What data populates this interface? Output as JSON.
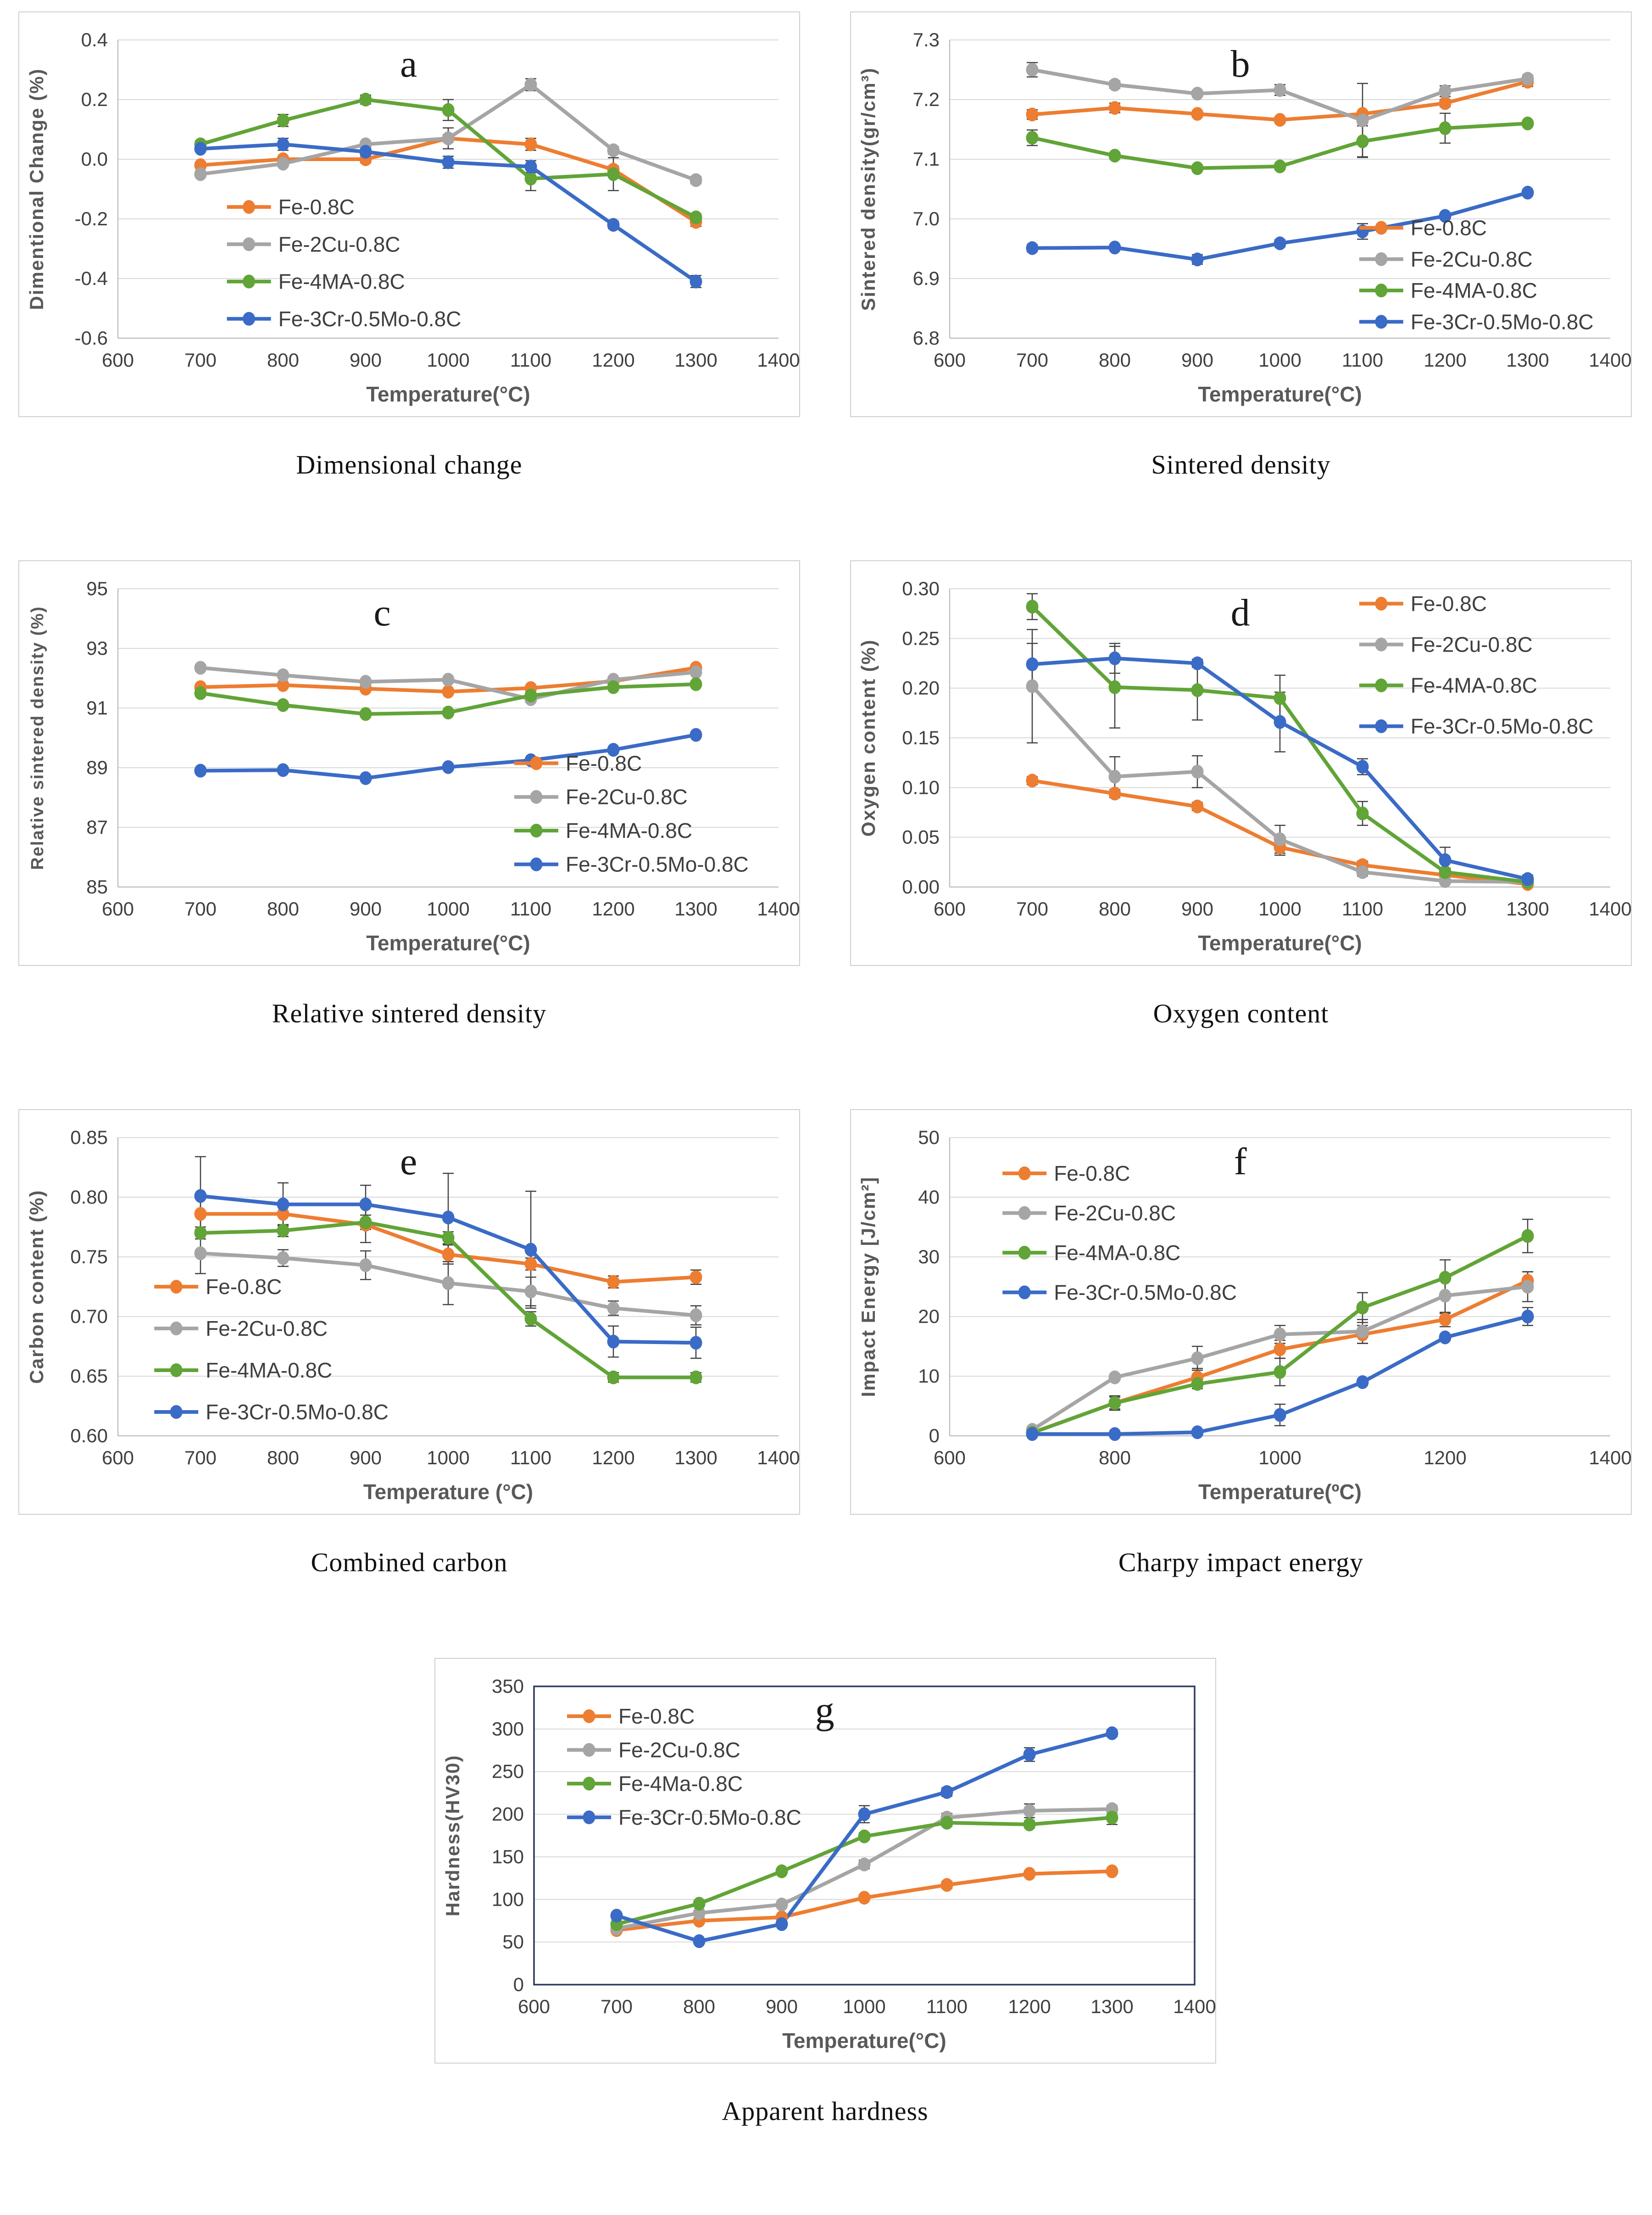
{
  "palette": {
    "gridline": "#d9d9d9",
    "axis": "#bfbfbf",
    "error_bar": "#404040",
    "tick_text": "#404040",
    "axis_label_text": "#595959",
    "legend_text": "#3f3f3f",
    "frame_dark": "#2e3a5f"
  },
  "chart_data": {
    "charts": [
      {
        "id": "a",
        "type": "line",
        "letter": "a",
        "caption": "Dimensional change",
        "xlabel": "Temperature(°C)",
        "ylabel": "Dimentional Change (%)",
        "xlim": [
          600,
          1400
        ],
        "xticks": [
          600,
          700,
          800,
          900,
          1000,
          1100,
          1200,
          1300,
          1400
        ],
        "ylim": [
          -0.6,
          0.4
        ],
        "ystep": 0.2,
        "ydec": 1,
        "grid": true,
        "frame": false,
        "letter_fx": 0.44,
        "legend": {
          "fx": 0.165,
          "fy": 0.56,
          "dy": 0.125
        },
        "x": [
          700,
          800,
          900,
          1000,
          1100,
          1200,
          1300
        ],
        "series": [
          {
            "name": "Fe-0.8C",
            "color": "#ED7D31",
            "values": [
              -0.02,
              0.0,
              0.0,
              0.07,
              0.05,
              -0.035,
              -0.21
            ],
            "err": [
              0.01,
              0.01,
              0.012,
              0.012,
              0.02,
              0.012,
              0.015
            ]
          },
          {
            "name": "Fe-2Cu-0.8C",
            "color": "#A5A5A5",
            "values": [
              -0.05,
              -0.015,
              0.05,
              0.07,
              0.25,
              0.03,
              -0.07
            ],
            "err": [
              0.01,
              0.01,
              0.01,
              0.035,
              0.02,
              0.012,
              0.012
            ]
          },
          {
            "name": "Fe-4MA-0.8C",
            "color": "#61A437",
            "values": [
              0.05,
              0.13,
              0.2,
              0.165,
              -0.065,
              -0.05,
              -0.195
            ],
            "err": [
              0.012,
              0.02,
              0.015,
              0.035,
              0.04,
              0.055,
              0.012
            ]
          },
          {
            "name": "Fe-3Cr-0.5Mo-0.8C",
            "color": "#3A6BC6",
            "values": [
              0.035,
              0.05,
              0.025,
              -0.01,
              -0.025,
              -0.22,
              -0.41
            ],
            "err": [
              0.008,
              0.02,
              0.012,
              0.02,
              0.02,
              0.012,
              0.02
            ]
          }
        ]
      },
      {
        "id": "b",
        "type": "line",
        "letter": "b",
        "caption": "Sintered density",
        "xlabel": "Temperature(°C)",
        "ylabel": "Sintered density(gr/cm³)",
        "xlim": [
          600,
          1400
        ],
        "xticks": [
          600,
          700,
          800,
          900,
          1000,
          1100,
          1200,
          1300,
          1400
        ],
        "ylim": [
          6.8,
          7.3
        ],
        "ystep": 0.1,
        "ydec": 1,
        "grid": true,
        "frame": false,
        "letter_fx": 0.44,
        "legend": {
          "fx": 0.62,
          "fy": 0.63,
          "dy": 0.105
        },
        "x": [
          700,
          800,
          900,
          1000,
          1100,
          1200,
          1300
        ],
        "series": [
          {
            "name": "Fe-0.8C",
            "color": "#ED7D31",
            "values": [
              7.175,
              7.186,
              7.176,
              7.166,
              7.176,
              7.194,
              7.23
            ],
            "err": [
              0.008,
              0.008,
              0.005,
              0.005,
              0.005,
              0.006,
              0.008
            ]
          },
          {
            "name": "Fe-2Cu-0.8C",
            "color": "#A5A5A5",
            "values": [
              7.25,
              7.225,
              7.21,
              7.216,
              7.165,
              7.214,
              7.235
            ],
            "err": [
              0.012,
              0.006,
              0.005,
              0.009,
              0.062,
              0.009,
              0.006
            ]
          },
          {
            "name": "Fe-4MA-0.8C",
            "color": "#61A437",
            "values": [
              7.136,
              7.106,
              7.085,
              7.088,
              7.13,
              7.152,
              7.16
            ],
            "err": [
              0.013,
              0.005,
              0.005,
              0.005,
              0.026,
              0.025,
              0.005
            ]
          },
          {
            "name": "Fe-3Cr-0.5Mo-0.8C",
            "color": "#3A6BC6",
            "values": [
              6.951,
              6.952,
              6.932,
              6.959,
              6.979,
              7.005,
              7.044
            ],
            "err": [
              0.006,
              0.005,
              0.008,
              0.006,
              0.013,
              0.005,
              0.005
            ]
          }
        ]
      },
      {
        "id": "c",
        "type": "line",
        "letter": "c",
        "caption": "Relative sintered density",
        "xlabel": "Temperature(°C)",
        "ylabel": "Relative sintered density (%)",
        "xlim": [
          600,
          1400
        ],
        "xticks": [
          600,
          700,
          800,
          900,
          1000,
          1100,
          1200,
          1300,
          1400
        ],
        "ylim": [
          85,
          95
        ],
        "ystep": 2,
        "ydec": 0,
        "grid": true,
        "frame": false,
        "letter_fx": 0.4,
        "legend": {
          "fx": 0.6,
          "fy": 0.585,
          "dy": 0.113
        },
        "x": [
          700,
          800,
          900,
          1000,
          1100,
          1200,
          1300
        ],
        "series": [
          {
            "name": "Fe-0.8C",
            "color": "#ED7D31",
            "values": [
              91.7,
              91.77,
              91.65,
              91.55,
              91.67,
              91.9,
              92.35
            ],
            "err": [
              0.08,
              0.06,
              0.05,
              0.05,
              0.05,
              0.06,
              0.08
            ]
          },
          {
            "name": "Fe-2Cu-0.8C",
            "color": "#A5A5A5",
            "values": [
              92.35,
              92.1,
              91.88,
              91.95,
              91.3,
              91.95,
              92.2
            ],
            "err": [
              0.1,
              0.06,
              0.05,
              0.08,
              0.1,
              0.08,
              0.05
            ]
          },
          {
            "name": "Fe-4MA-0.8C",
            "color": "#61A437",
            "values": [
              91.5,
              91.1,
              90.8,
              90.85,
              91.42,
              91.7,
              91.8
            ],
            "err": [
              0.1,
              0.05,
              0.05,
              0.05,
              0.1,
              0.1,
              0.05
            ]
          },
          {
            "name": "Fe-3Cr-0.5Mo-0.8C",
            "color": "#3A6BC6",
            "values": [
              88.9,
              88.92,
              88.65,
              89.02,
              89.25,
              89.6,
              90.1
            ],
            "err": [
              0.06,
              0.05,
              0.06,
              0.05,
              0.08,
              0.05,
              0.05
            ]
          }
        ]
      },
      {
        "id": "d",
        "type": "line",
        "letter": "d",
        "caption": "Oxygen content",
        "xlabel": "Temperature(°C)",
        "ylabel": "Oxygen content (%)",
        "xlim": [
          600,
          1400
        ],
        "xticks": [
          600,
          700,
          800,
          900,
          1000,
          1100,
          1200,
          1300,
          1400
        ],
        "ylim": [
          0,
          0.3
        ],
        "ystep": 0.05,
        "ydec": 2,
        "grid": true,
        "frame": false,
        "letter_fx": 0.44,
        "legend": {
          "fx": 0.62,
          "fy": 0.05,
          "dy": 0.137
        },
        "x": [
          700,
          800,
          900,
          1000,
          1100,
          1200,
          1300
        ],
        "series": [
          {
            "name": "Fe-0.8C",
            "color": "#ED7D31",
            "values": [
              0.107,
              0.094,
              0.081,
              0.04,
              0.022,
              0.012,
              0.003
            ],
            "err": [
              0.004,
              0.004,
              0.004,
              0.008,
              0.004,
              0.003,
              0.002
            ]
          },
          {
            "name": "Fe-2Cu-0.8C",
            "color": "#A5A5A5",
            "values": [
              0.202,
              0.111,
              0.116,
              0.048,
              0.015,
              0.006,
              0.005
            ],
            "err": [
              0.057,
              0.02,
              0.016,
              0.014,
              0.004,
              0.003,
              0.002
            ]
          },
          {
            "name": "Fe-4MA-0.8C",
            "color": "#61A437",
            "values": [
              0.282,
              0.201,
              0.198,
              0.19,
              0.074,
              0.015,
              0.005
            ],
            "err": [
              0.013,
              0.041,
              0.03,
              0.023,
              0.012,
              0.004,
              0.002
            ]
          },
          {
            "name": "Fe-3Cr-0.5Mo-0.8C",
            "color": "#3A6BC6",
            "values": [
              0.224,
              0.23,
              0.225,
              0.166,
              0.121,
              0.027,
              0.008
            ],
            "err": [
              0.021,
              0.015,
              0.004,
              0.03,
              0.008,
              0.013,
              0.004
            ]
          }
        ]
      },
      {
        "id": "e",
        "type": "line",
        "letter": "e",
        "caption": "Combined carbon",
        "xlabel": "Temperature (°C)",
        "ylabel": "Carbon content (%)",
        "xlim": [
          600,
          1400
        ],
        "xticks": [
          600,
          700,
          800,
          900,
          1000,
          1100,
          1200,
          1300,
          1400
        ],
        "ylim": [
          0.6,
          0.85
        ],
        "ystep": 0.05,
        "ydec": 2,
        "grid": true,
        "frame": false,
        "letter_fx": 0.44,
        "legend": {
          "fx": 0.055,
          "fy": 0.5,
          "dy": 0.14
        },
        "x": [
          700,
          800,
          900,
          1000,
          1100,
          1200,
          1300
        ],
        "series": [
          {
            "name": "Fe-0.8C",
            "color": "#ED7D31",
            "values": [
              0.786,
              0.786,
              0.777,
              0.752,
              0.744,
              0.729,
              0.733
            ],
            "err": [
              0.013,
              0.01,
              0.015,
              0.008,
              0.005,
              0.005,
              0.006
            ]
          },
          {
            "name": "Fe-2Cu-0.8C",
            "color": "#A5A5A5",
            "values": [
              0.753,
              0.749,
              0.743,
              0.728,
              0.721,
              0.707,
              0.701
            ],
            "err": [
              0.017,
              0.007,
              0.012,
              0.018,
              0.012,
              0.006,
              0.008
            ]
          },
          {
            "name": "Fe-4MA-0.8C",
            "color": "#61A437",
            "values": [
              0.77,
              0.772,
              0.779,
              0.766,
              0.698,
              0.649,
              0.649
            ],
            "err": [
              0.005,
              0.005,
              0.006,
              0.005,
              0.006,
              0.004,
              0.004
            ]
          },
          {
            "name": "Fe-3Cr-0.5Mo-0.8C",
            "color": "#3A6BC6",
            "values": [
              0.801,
              0.794,
              0.794,
              0.783,
              0.756,
              0.679,
              0.678
            ],
            "err": [
              0.033,
              0.018,
              0.016,
              0.037,
              0.049,
              0.013,
              0.013
            ]
          }
        ]
      },
      {
        "id": "f",
        "type": "line",
        "letter": "f",
        "caption": "Charpy impact energy",
        "xlabel": "Temperature(ºC)",
        "ylabel": "Impact Energy  [J/cm²]",
        "xlim": [
          600,
          1400
        ],
        "xticks": [
          600,
          800,
          1000,
          1200,
          1400
        ],
        "ylim": [
          0,
          50
        ],
        "ystep": 10,
        "ydec": 0,
        "grid": true,
        "frame": false,
        "letter_fx": 0.44,
        "legend": {
          "fx": 0.08,
          "fy": 0.12,
          "dy": 0.133
        },
        "x": [
          700,
          800,
          900,
          1000,
          1100,
          1200,
          1300
        ],
        "series": [
          {
            "name": "Fe-0.8C",
            "color": "#ED7D31",
            "values": [
              0.5,
              5.5,
              9.8,
              14.5,
              17,
              19.5,
              26
            ],
            "err": [
              0.3,
              1.2,
              1.5,
              1.5,
              1.5,
              1.2,
              1.5
            ]
          },
          {
            "name": "Fe-2Cu-0.8C",
            "color": "#A5A5A5",
            "values": [
              1.0,
              9.8,
              13,
              17,
              17.5,
              23.5,
              25
            ],
            "err": [
              0.3,
              0.5,
              2.0,
              1.5,
              2.0,
              3.0,
              2.5
            ]
          },
          {
            "name": "Fe-4MA-0.8C",
            "color": "#61A437",
            "values": [
              0.5,
              5.5,
              8.7,
              10.7,
              21.5,
              26.5,
              33.5
            ],
            "err": [
              0.3,
              1.0,
              0.8,
              2.3,
              2.5,
              3.0,
              2.8
            ]
          },
          {
            "name": "Fe-3Cr-0.5Mo-0.8C",
            "color": "#3A6BC6",
            "values": [
              0.3,
              0.3,
              0.6,
              3.5,
              9,
              16.5,
              20
            ],
            "err": [
              0.2,
              0.2,
              0.3,
              1.8,
              0.5,
              0.5,
              1.5
            ]
          }
        ]
      },
      {
        "id": "g",
        "type": "line",
        "letter": "g",
        "caption": "Apparent hardness",
        "xlabel": "Temperature(°C)",
        "ylabel": "Hardness(HV30)",
        "xlim": [
          600,
          1400
        ],
        "xticks": [
          600,
          700,
          800,
          900,
          1000,
          1100,
          1200,
          1300,
          1400
        ],
        "ylim": [
          0,
          350
        ],
        "ystep": 50,
        "ydec": 0,
        "grid": true,
        "frame": true,
        "letter_fx": 0.44,
        "legend": {
          "fx": 0.05,
          "fy": 0.1,
          "dy": 0.113
        },
        "x": [
          700,
          800,
          900,
          1000,
          1100,
          1200,
          1300
        ],
        "series": [
          {
            "name": "Fe-0.8C",
            "color": "#ED7D31",
            "values": [
              64,
              75,
              79,
              102,
              117,
              130,
              133
            ],
            "err": [
              3,
              2,
              2,
              3,
              4,
              3,
              3
            ]
          },
          {
            "name": "Fe-2Cu-0.8C",
            "color": "#A5A5A5",
            "values": [
              66,
              84,
              94,
              141,
              196,
              204,
              206
            ],
            "err": [
              3,
              3,
              3,
              5,
              5,
              8,
              4
            ]
          },
          {
            "name": "Fe-4Ma-0.8C",
            "color": "#61A437",
            "values": [
              71,
              95,
              133,
              174,
              190,
              188,
              196
            ],
            "err": [
              3,
              3,
              3,
              4,
              4,
              4,
              8
            ]
          },
          {
            "name": "Fe-3Cr-0.5Mo-0.8C",
            "color": "#3A6BC6",
            "values": [
              81,
              51,
              71,
              200,
              226,
              270,
              295
            ],
            "err": [
              3,
              3,
              3,
              10,
              5,
              8,
              4
            ]
          }
        ]
      }
    ]
  }
}
